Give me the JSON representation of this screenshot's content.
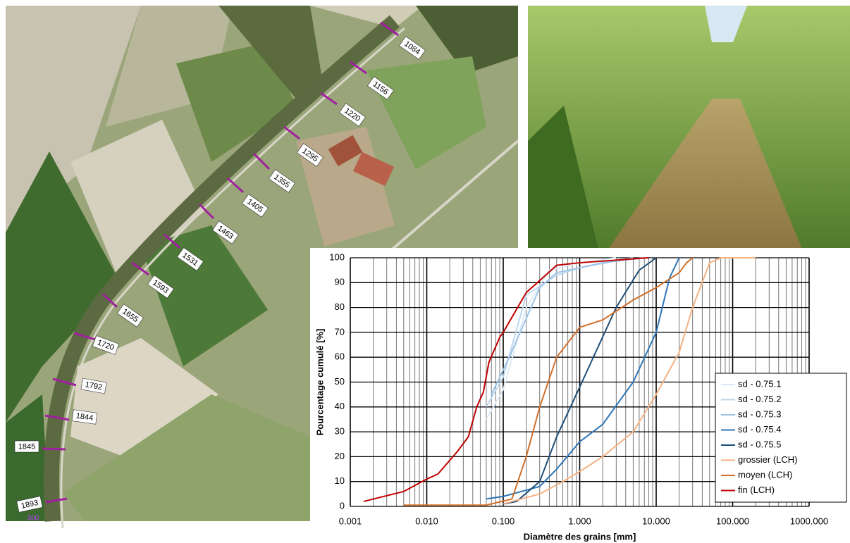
{
  "map": {
    "section_labels": [
      "1084",
      "1156",
      "1220",
      "1295",
      "1355",
      "1405",
      "1463",
      "1531",
      "1593",
      "1655",
      "1720",
      "1792",
      "1844",
      "1845",
      "1893"
    ],
    "scale_label": "300"
  },
  "chart_data": {
    "type": "line",
    "log_x": true,
    "grid": true,
    "minor_grid": true,
    "legend": "lower right",
    "x_label": "Diamètre des grains [mm]",
    "y_label": "Pourcentage cumulé [%]",
    "xlim": [
      0.001,
      1000
    ],
    "ylim": [
      0,
      100
    ],
    "xticks": [
      {
        "value": 0.001,
        "label": "0.001"
      },
      {
        "value": 0.01,
        "label": "0.010"
      },
      {
        "value": 0.1,
        "label": "0.100"
      },
      {
        "value": 1,
        "label": "1.000"
      },
      {
        "value": 10,
        "label": "10.000"
      },
      {
        "value": 100,
        "label": "100.000"
      },
      {
        "value": 1000,
        "label": "1000.000"
      }
    ],
    "yticks": [
      0,
      10,
      20,
      30,
      40,
      50,
      60,
      70,
      80,
      90,
      100
    ],
    "series": [
      {
        "name": "sd  - 0.75.1",
        "color": "#deebf7",
        "x": [
          0.06,
          0.1,
          0.2,
          0.4,
          1,
          3
        ],
        "values": [
          35,
          47,
          80,
          95,
          98,
          100
        ]
      },
      {
        "name": "sd  - 0.75.2",
        "color": "#bdd7ee",
        "x": [
          0.06,
          0.1,
          0.2,
          0.5,
          1,
          5
        ],
        "values": [
          40,
          52,
          85,
          93,
          96,
          100
        ]
      },
      {
        "name": "sd  - 0.75.3",
        "color": "#9dc3e6",
        "x": [
          0.07,
          0.12,
          0.3,
          0.5,
          2,
          7
        ],
        "values": [
          45,
          60,
          88,
          94,
          98,
          100
        ]
      },
      {
        "name": "sd  - 0.75.4",
        "color": "#2e75b6",
        "x": [
          0.06,
          0.1,
          0.3,
          0.5,
          1,
          2,
          5,
          10,
          15,
          20
        ],
        "values": [
          3,
          4,
          8,
          15,
          26,
          33,
          50,
          70,
          92,
          100
        ]
      },
      {
        "name": "sd  - 0.75.5",
        "color": "#1f4e79",
        "x": [
          0.1,
          0.15,
          0.3,
          0.5,
          1,
          3,
          6,
          10
        ],
        "values": [
          1,
          2,
          10,
          28,
          48,
          80,
          95,
          100
        ]
      },
      {
        "name": "grossier (LCH)",
        "color": "#f4b183",
        "x": [
          0.1,
          0.3,
          0.6,
          1,
          2,
          5,
          10,
          20,
          30,
          50,
          70,
          200
        ],
        "values": [
          1,
          5,
          10,
          14,
          20,
          30,
          45,
          62,
          80,
          98,
          100,
          100
        ]
      },
      {
        "name": "moyen (LCH)",
        "color": "#d0702a",
        "x": [
          0.005,
          0.06,
          0.13,
          0.2,
          0.3,
          0.5,
          1,
          2,
          5,
          10,
          20,
          25,
          30
        ],
        "values": [
          0.5,
          0.5,
          3,
          20,
          40,
          60,
          72,
          75,
          83,
          88,
          94,
          98,
          100
        ]
      },
      {
        "name": "fin (LCH)",
        "color": "#c00000",
        "x": [
          0.0015,
          0.005,
          0.01,
          0.014,
          0.025,
          0.035,
          0.045,
          0.055,
          0.065,
          0.09,
          0.1,
          0.2,
          0.5,
          1,
          8
        ],
        "values": [
          2,
          6,
          11,
          13,
          22,
          28,
          40,
          46,
          58,
          68,
          70,
          86,
          97,
          98,
          100
        ]
      }
    ]
  }
}
